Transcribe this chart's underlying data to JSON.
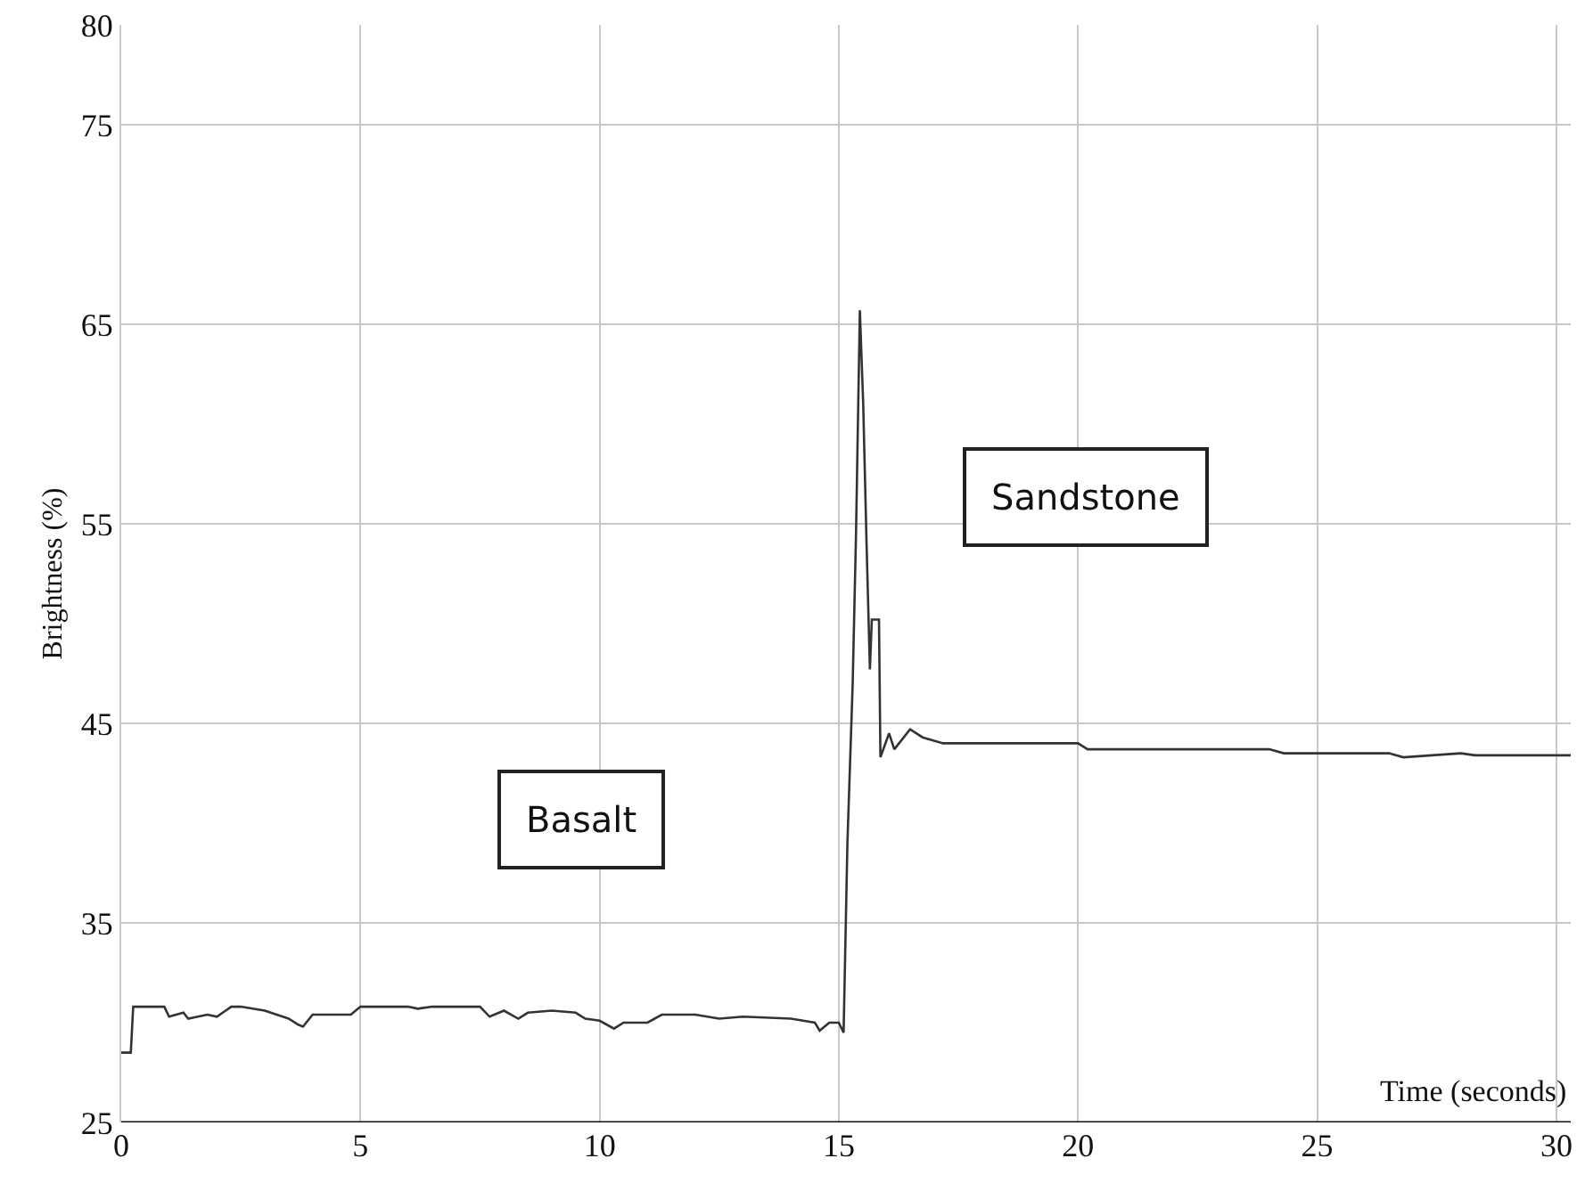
{
  "chart_data": {
    "type": "line",
    "xlabel": "Time (seconds)",
    "ylabel": "Brightness (%)",
    "annotations": [
      "Basalt",
      "Sandstone"
    ],
    "x": [
      0,
      0.2,
      0.25,
      0.9,
      1.0,
      1.3,
      1.4,
      1.8,
      2.0,
      2.3,
      2.5,
      3.0,
      3.5,
      3.7,
      3.8,
      4.0,
      4.8,
      5.0,
      6.0,
      6.2,
      6.5,
      7.5,
      7.7,
      8.0,
      8.3,
      8.5,
      9.0,
      9.5,
      9.7,
      10.0,
      10.3,
      10.5,
      11.0,
      11.3,
      12.0,
      12.5,
      13.0,
      14.0,
      14.5,
      14.6,
      14.8,
      15.0,
      15.1,
      15.18,
      15.29,
      15.36,
      15.44,
      15.51,
      15.58,
      15.65,
      15.69,
      15.84,
      15.87,
      16.05,
      16.16,
      16.49,
      16.75,
      17.18,
      18.5,
      20.0,
      20.2,
      22.0,
      24.0,
      24.3,
      26.5,
      26.8,
      28.0,
      28.3,
      30.3
    ],
    "series": [
      {
        "color": "#333333",
        "values": [
          28.5,
          28.5,
          30.8,
          30.8,
          30.3,
          30.5,
          30.2,
          30.4,
          30.3,
          30.8,
          30.8,
          30.6,
          30.2,
          29.9,
          29.8,
          30.4,
          30.4,
          30.8,
          30.8,
          30.7,
          30.8,
          30.8,
          30.3,
          30.6,
          30.2,
          30.5,
          30.6,
          30.5,
          30.2,
          30.1,
          29.7,
          30.0,
          30.0,
          30.4,
          30.4,
          30.2,
          30.3,
          30.2,
          30.0,
          29.6,
          30.0,
          30.0,
          29.5,
          39.0,
          47.0,
          54.5,
          65.7,
          61.0,
          54.0,
          47.7,
          50.2,
          50.2,
          43.3,
          44.5,
          43.7,
          44.7,
          44.3,
          44.0,
          44.0,
          44.0,
          43.7,
          43.7,
          43.7,
          43.5,
          43.5,
          43.3,
          43.5,
          43.4,
          43.4
        ]
      }
    ],
    "xlim": [
      0,
      30.3
    ],
    "ylim": [
      25,
      80
    ],
    "xticks": [
      0,
      5,
      10,
      15,
      20,
      25,
      30
    ],
    "yticks": [
      25,
      35,
      45,
      55,
      65,
      75,
      80
    ],
    "grid": true,
    "marker": "none",
    "line_style": "solid"
  }
}
